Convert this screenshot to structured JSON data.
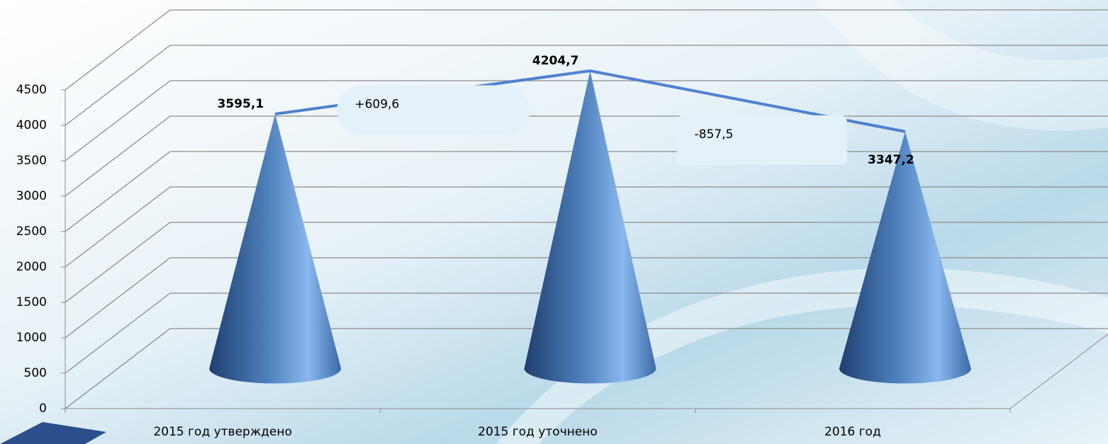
{
  "chart_data": {
    "type": "cone",
    "categories": [
      "2015 год утверждено",
      "2015 год уточнено",
      "2016 год"
    ],
    "values": [
      3595.1,
      4204.7,
      3347.2
    ],
    "value_labels": [
      "3595,1",
      "4204,7",
      "3347,2"
    ],
    "color": "#4f81bd",
    "ylim": [
      0,
      4500
    ],
    "yticks": [
      0,
      500,
      1000,
      1500,
      2000,
      2500,
      3000,
      3500,
      4000,
      4500
    ],
    "grid": true,
    "annotations": [
      "+609,6",
      "-857,5"
    ]
  }
}
